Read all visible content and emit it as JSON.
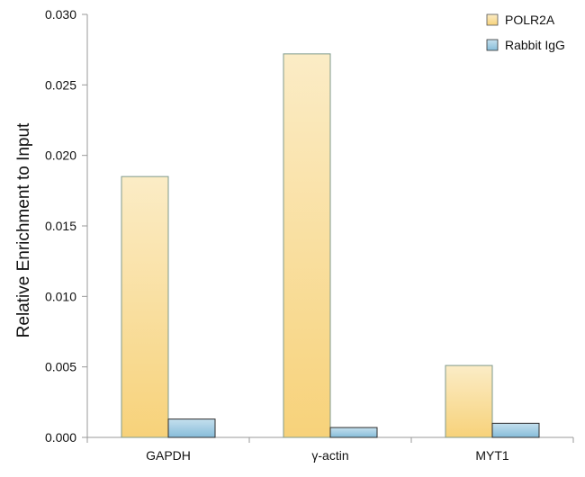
{
  "chart_data": {
    "type": "bar",
    "title": "",
    "xlabel": "",
    "ylabel": "Relative Enrichment to Input",
    "categories": [
      "GAPDH",
      "γ-actin",
      "MYT1"
    ],
    "series": [
      {
        "name": "POLR2A",
        "values": [
          0.0185,
          0.0272,
          0.0051
        ]
      },
      {
        "name": "Rabbit IgG",
        "values": [
          0.0013,
          0.0007,
          0.001
        ]
      }
    ],
    "ylim": [
      0,
      0.03
    ],
    "yticks": [
      "0.000",
      "0.005",
      "0.010",
      "0.015",
      "0.020",
      "0.025",
      "0.030"
    ],
    "grid": false,
    "legend_position": "top-right",
    "colors": {
      "polr2a_top": "#fbecc6",
      "polr2a_bottom": "#f7d27a",
      "polr2a_stroke": "#7f9a8c",
      "igg_top": "#c5e0ee",
      "igg_bottom": "#86bcd9",
      "igg_stroke": "#2d2d2d",
      "axis": "#9a9a9a"
    }
  }
}
